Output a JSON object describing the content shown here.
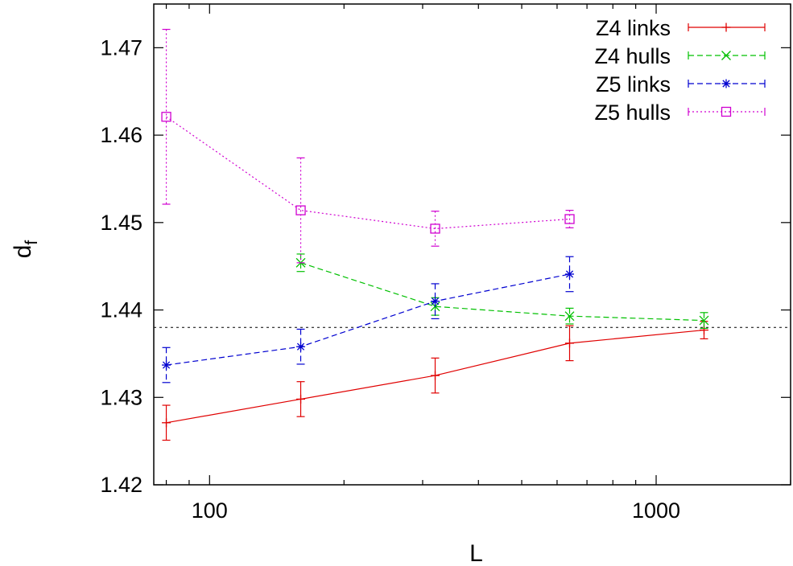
{
  "chart_data": {
    "type": "line",
    "title": "",
    "xlabel": "L",
    "ylabel_main": "d",
    "ylabel_sub": "f",
    "xscale": "log",
    "xlim": [
      75,
      2000
    ],
    "ylim": [
      1.42,
      1.475
    ],
    "x_ticks": [
      100,
      1000
    ],
    "x_tick_labels": [
      "100",
      "1000"
    ],
    "y_ticks": [
      1.42,
      1.43,
      1.44,
      1.45,
      1.46,
      1.47
    ],
    "y_tick_labels": [
      "1.42",
      "1.43",
      "1.44",
      "1.45",
      "1.46",
      "1.47"
    ],
    "grid": false,
    "legend_position": "top-right",
    "reference_line": {
      "y": 1.438,
      "color": "#000000",
      "style": "dotted"
    },
    "series": [
      {
        "name": "Z4 links",
        "color": "#e00000",
        "marker": "plus",
        "line_style": "solid",
        "x": [
          80,
          160,
          320,
          640,
          1280
        ],
        "y": [
          1.4271,
          1.4298,
          1.4325,
          1.4362,
          1.4377
        ],
        "yerr": [
          0.002,
          0.002,
          0.002,
          0.002,
          0.001
        ]
      },
      {
        "name": "Z4 hulls",
        "color": "#00c000",
        "marker": "cross",
        "line_style": "dashed",
        "x": [
          160,
          320,
          640,
          1280
        ],
        "y": [
          1.4454,
          1.4404,
          1.4393,
          1.4388
        ],
        "yerr": [
          0.001,
          0.001,
          0.0009,
          0.0009
        ]
      },
      {
        "name": "Z5 links",
        "color": "#0000d0",
        "marker": "star",
        "line_style": "dashed",
        "x": [
          80,
          160,
          320,
          640
        ],
        "y": [
          1.4337,
          1.4358,
          1.441,
          1.4441
        ],
        "yerr": [
          0.002,
          0.002,
          0.002,
          0.002
        ]
      },
      {
        "name": "Z5 hulls",
        "color": "#d000d0",
        "marker": "square",
        "line_style": "dotted",
        "x": [
          80,
          160,
          320,
          640
        ],
        "y": [
          1.4621,
          1.4514,
          1.4493,
          1.4504
        ],
        "yerr": [
          0.01,
          0.006,
          0.002,
          0.001
        ]
      }
    ]
  }
}
